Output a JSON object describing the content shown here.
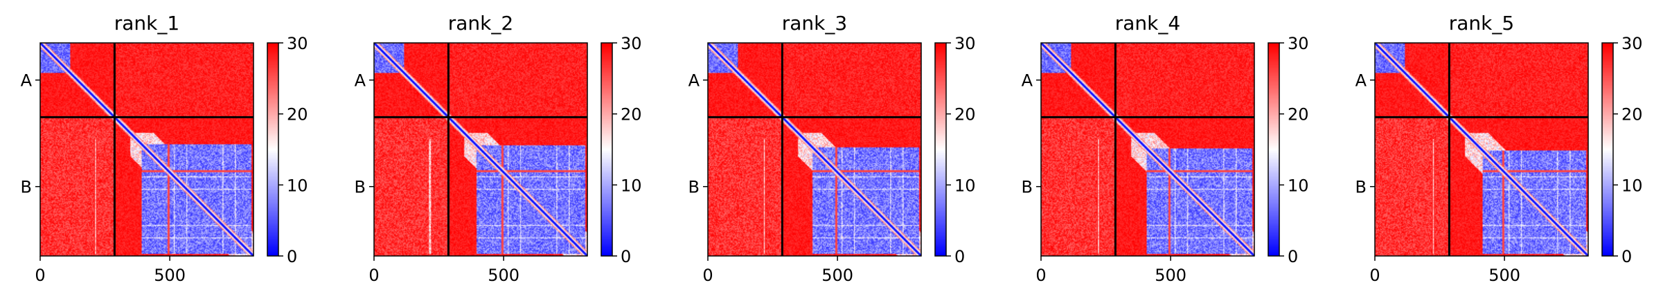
{
  "chart_data": {
    "type": "heatmap",
    "colormap": {
      "name": "bwr",
      "low": "#0000ff",
      "mid": "#ffffff",
      "high": "#ff0000"
    },
    "colorbar": {
      "vmin": 0,
      "vmax": 30,
      "ticks": [
        0,
        10,
        20,
        30
      ]
    },
    "x_axis": {
      "range": [
        0,
        823
      ],
      "ticks": [
        0,
        500
      ]
    },
    "chains": [
      {
        "label": "A",
        "start": 0,
        "end": 287
      },
      {
        "label": "B",
        "start": 287,
        "end": 823
      }
    ],
    "panels": [
      {
        "title": "rank_1",
        "variant": 0
      },
      {
        "title": "rank_2",
        "variant": 1
      },
      {
        "title": "rank_3",
        "variant": 2
      },
      {
        "title": "rank_4",
        "variant": 3
      },
      {
        "title": "rank_5",
        "variant": 4
      }
    ]
  }
}
